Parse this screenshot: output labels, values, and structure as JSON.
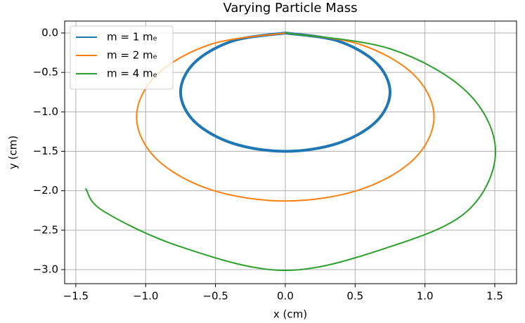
{
  "chart_data": {
    "type": "line",
    "title": "Varying Particle Mass",
    "x_label": "x (cm)",
    "y_label": "y (cm)",
    "xlim": [
      -1.58,
      1.656
    ],
    "ylim": [
      -3.178,
      0.151
    ],
    "xticks": [
      {
        "value": -1.5,
        "label": "−1.5"
      },
      {
        "value": -1.0,
        "label": "−1.0"
      },
      {
        "value": -0.5,
        "label": "−0.5"
      },
      {
        "value": 0,
        "label": "0.0"
      },
      0.5,
      {
        "value": 1.0,
        "label": "1.0"
      },
      1.5
    ],
    "yticks": [
      {
        "value": 0,
        "label": "0.0"
      },
      {
        "value": -0.5,
        "label": "−0.5"
      },
      {
        "value": -1.0,
        "label": "−1.0"
      },
      {
        "value": -1.5,
        "label": "−1.5"
      },
      {
        "value": -2.0,
        "label": "−2.0"
      },
      {
        "value": -2.5,
        "label": "−2.5"
      },
      {
        "value": -3.0,
        "label": "−3.0"
      }
    ],
    "grid": true,
    "legend": "upper-left",
    "series": [
      {
        "name": "m = 1 mₑ",
        "color": "#1f77b4",
        "linewidth": 4,
        "x": [
          0,
          0.375,
          0.6495,
          0.75,
          0.6495,
          0.375,
          0,
          -0.375,
          -0.6495,
          -0.75,
          -0.6495,
          -0.375,
          0
        ],
        "values": [
          0,
          -0.1005,
          -0.375,
          -0.75,
          -1.125,
          -1.3995,
          -1.5,
          -1.3995,
          -1.125,
          -0.75,
          -0.375,
          -0.1005,
          0
        ]
      },
      {
        "name": "m = 2 mₑ",
        "color": "#ff7f0e",
        "linewidth": 2,
        "x": [
          0,
          0.5325,
          0.9223,
          1.065,
          0.9223,
          0.5325,
          0,
          -0.5325,
          -0.9223,
          -1.065,
          -0.9223,
          -0.5325,
          0
        ],
        "values": [
          0,
          -0.1427,
          -0.5325,
          -1.065,
          -1.5975,
          -1.9873,
          -2.13,
          -1.9873,
          -1.5975,
          -1.065,
          -0.5325,
          -0.1427,
          0
        ]
      },
      {
        "name": "m = 4 mₑ",
        "color": "#2ca02c",
        "linewidth": 2,
        "x": [
          0,
          0.7525,
          1.3033,
          1.505,
          1.3033,
          0.7525,
          0,
          -0.7525,
          -1.3033,
          -1.43
        ],
        "values": [
          0,
          -0.2017,
          -0.7525,
          -1.505,
          -2.2575,
          -2.7083,
          -3.01,
          -2.7083,
          -2.2575,
          -1.97
        ]
      }
    ]
  }
}
